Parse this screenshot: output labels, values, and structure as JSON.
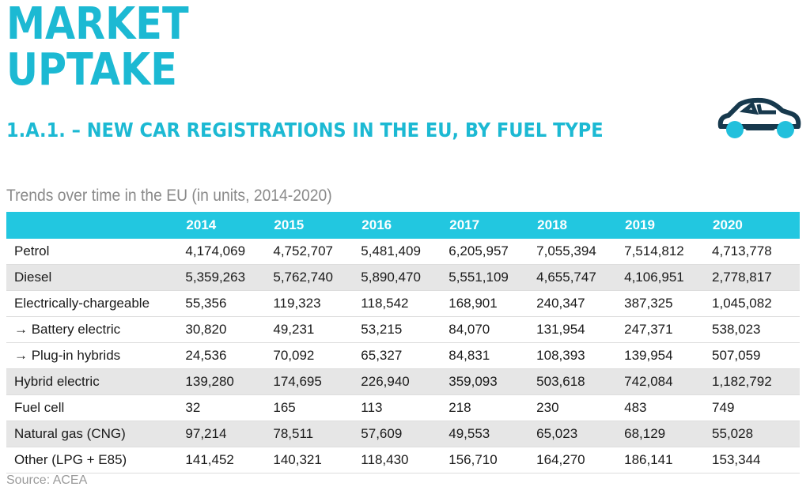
{
  "header": {
    "title_line1": "MARKET",
    "title_line2": "UPTAKE",
    "subtitle": "1.A.1. – NEW CAR REGISTRATIONS IN THE EU, BY FUEL TYPE",
    "icon": "car-icon"
  },
  "table": {
    "caption": "Trends over time in the EU (in units, 2014-2020)",
    "columns": [
      "2014",
      "2015",
      "2016",
      "2017",
      "2018",
      "2019",
      "2020"
    ],
    "rows": [
      {
        "label": "Petrol",
        "values": [
          "4,174,069",
          "4,752,707",
          "5,481,409",
          "6,205,957",
          "7,055,394",
          "7,514,812",
          "4,713,778"
        ]
      },
      {
        "label": "Diesel",
        "values": [
          "5,359,263",
          "5,762,740",
          "5,890,470",
          "5,551,109",
          "4,655,747",
          "4,106,951",
          "2,778,817"
        ]
      },
      {
        "label": "Electrically-chargeable",
        "values": [
          "55,356",
          "119,323",
          "118,542",
          "168,901",
          "240,347",
          "387,325",
          "1,045,082"
        ]
      },
      {
        "label": "→ Battery electric",
        "values": [
          "30,820",
          "49,231",
          "53,215",
          "84,070",
          "131,954",
          "247,371",
          "538,023"
        ]
      },
      {
        "label": "→ Plug-in hybrids",
        "values": [
          "24,536",
          "70,092",
          "65,327",
          "84,831",
          "108,393",
          "139,954",
          "507,059"
        ]
      },
      {
        "label": "Hybrid electric",
        "values": [
          "139,280",
          "174,695",
          "226,940",
          "359,093",
          "503,618",
          "742,084",
          "1,182,792"
        ]
      },
      {
        "label": "Fuel cell",
        "values": [
          "32",
          "165",
          "113",
          "218",
          "230",
          "483",
          "749"
        ]
      },
      {
        "label": "Natural gas (CNG)",
        "values": [
          "97,214",
          "78,511",
          "57,609",
          "49,553",
          "65,023",
          "68,129",
          "55,028"
        ]
      },
      {
        "label": "Other (LPG + E85)",
        "values": [
          "141,452",
          "140,321",
          "118,430",
          "156,710",
          "164,270",
          "186,141",
          "153,344"
        ]
      }
    ],
    "source": "Source: ACEA"
  },
  "colors": {
    "accent": "#1cb9d3",
    "header_bg": "#22c7e0",
    "shade": "#e6e6e6",
    "car_body": "#17394d"
  }
}
